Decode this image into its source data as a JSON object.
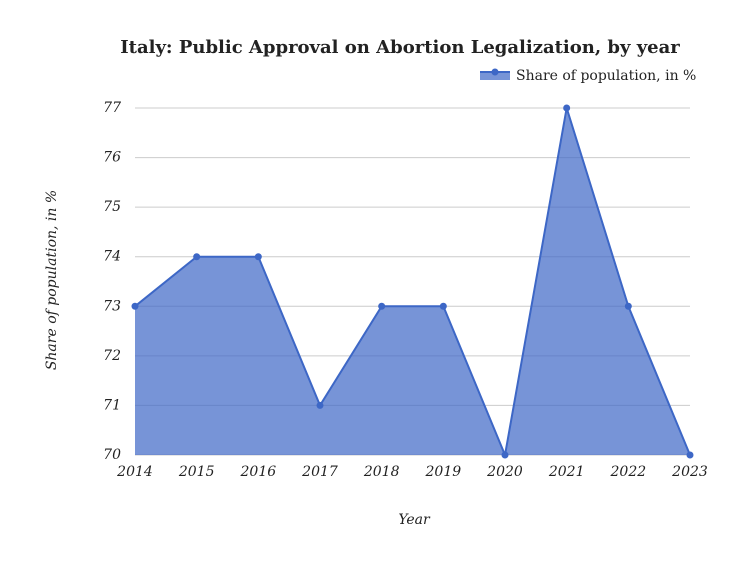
{
  "chart_data": {
    "type": "area",
    "title": "Italy: Public Approval on Abortion Legalization, by year",
    "x_label": "Year",
    "y_label": "Share of population, in %",
    "x": [
      2014,
      2015,
      2016,
      2017,
      2018,
      2019,
      2020,
      2021,
      2022,
      2023
    ],
    "series": [
      {
        "name": "Share of population, in %",
        "color": "#3d67c6",
        "values": [
          73,
          74,
          74,
          71,
          73,
          73,
          70,
          77,
          73,
          70
        ]
      }
    ],
    "xlim": [
      2014,
      2023
    ],
    "xticks": [
      2014,
      2015,
      2016,
      2017,
      2018,
      2019,
      2020,
      2021,
      2022,
      2023
    ],
    "ylim": [
      70,
      77
    ],
    "yticks": [
      70,
      71,
      72,
      73,
      74,
      75,
      76,
      77
    ],
    "grid": true,
    "legend": "top-right"
  }
}
